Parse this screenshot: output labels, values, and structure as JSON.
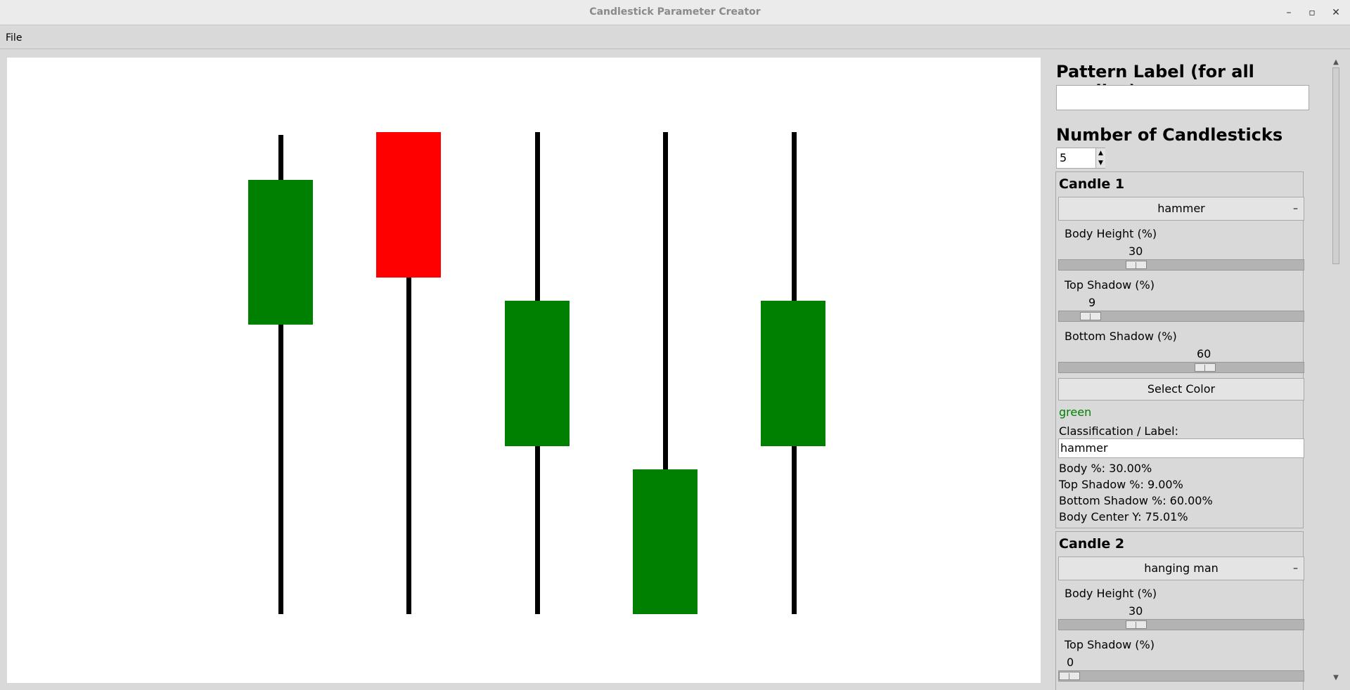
{
  "window": {
    "title": "Candlestick Parameter Creator"
  },
  "menu": {
    "file": "File"
  },
  "panel": {
    "pattern_label_title": "Pattern Label (for all candles):",
    "pattern_label_value": "",
    "num_candles_title": "Number of Candlesticks",
    "num_candles_value": "5"
  },
  "candles": [
    {
      "title": "Candle 1",
      "pattern": "hammer",
      "body_height_label": "Body Height (%)",
      "body_height": "30",
      "top_shadow_label": "Top Shadow (%)",
      "top_shadow": "9",
      "bottom_shadow_label": "Bottom Shadow (%)",
      "bottom_shadow": "60",
      "select_color": "Select Color",
      "color_name": "green",
      "class_label": "Classification / Label:",
      "class_value": "hammer",
      "body_pct": "Body %: 30.00%",
      "top_shadow_pct": "Top Shadow %: 9.00%",
      "bottom_shadow_pct": "Bottom Shadow %: 60.00%",
      "body_center": "Body Center Y: 75.01%"
    },
    {
      "title": "Candle 2",
      "pattern": "hanging man",
      "body_height_label": "Body Height (%)",
      "body_height": "30",
      "top_shadow_label": "Top Shadow (%)",
      "top_shadow": "0"
    }
  ],
  "colors": {
    "green": "#008000",
    "red": "#ff0000",
    "wick": "#000000"
  }
}
